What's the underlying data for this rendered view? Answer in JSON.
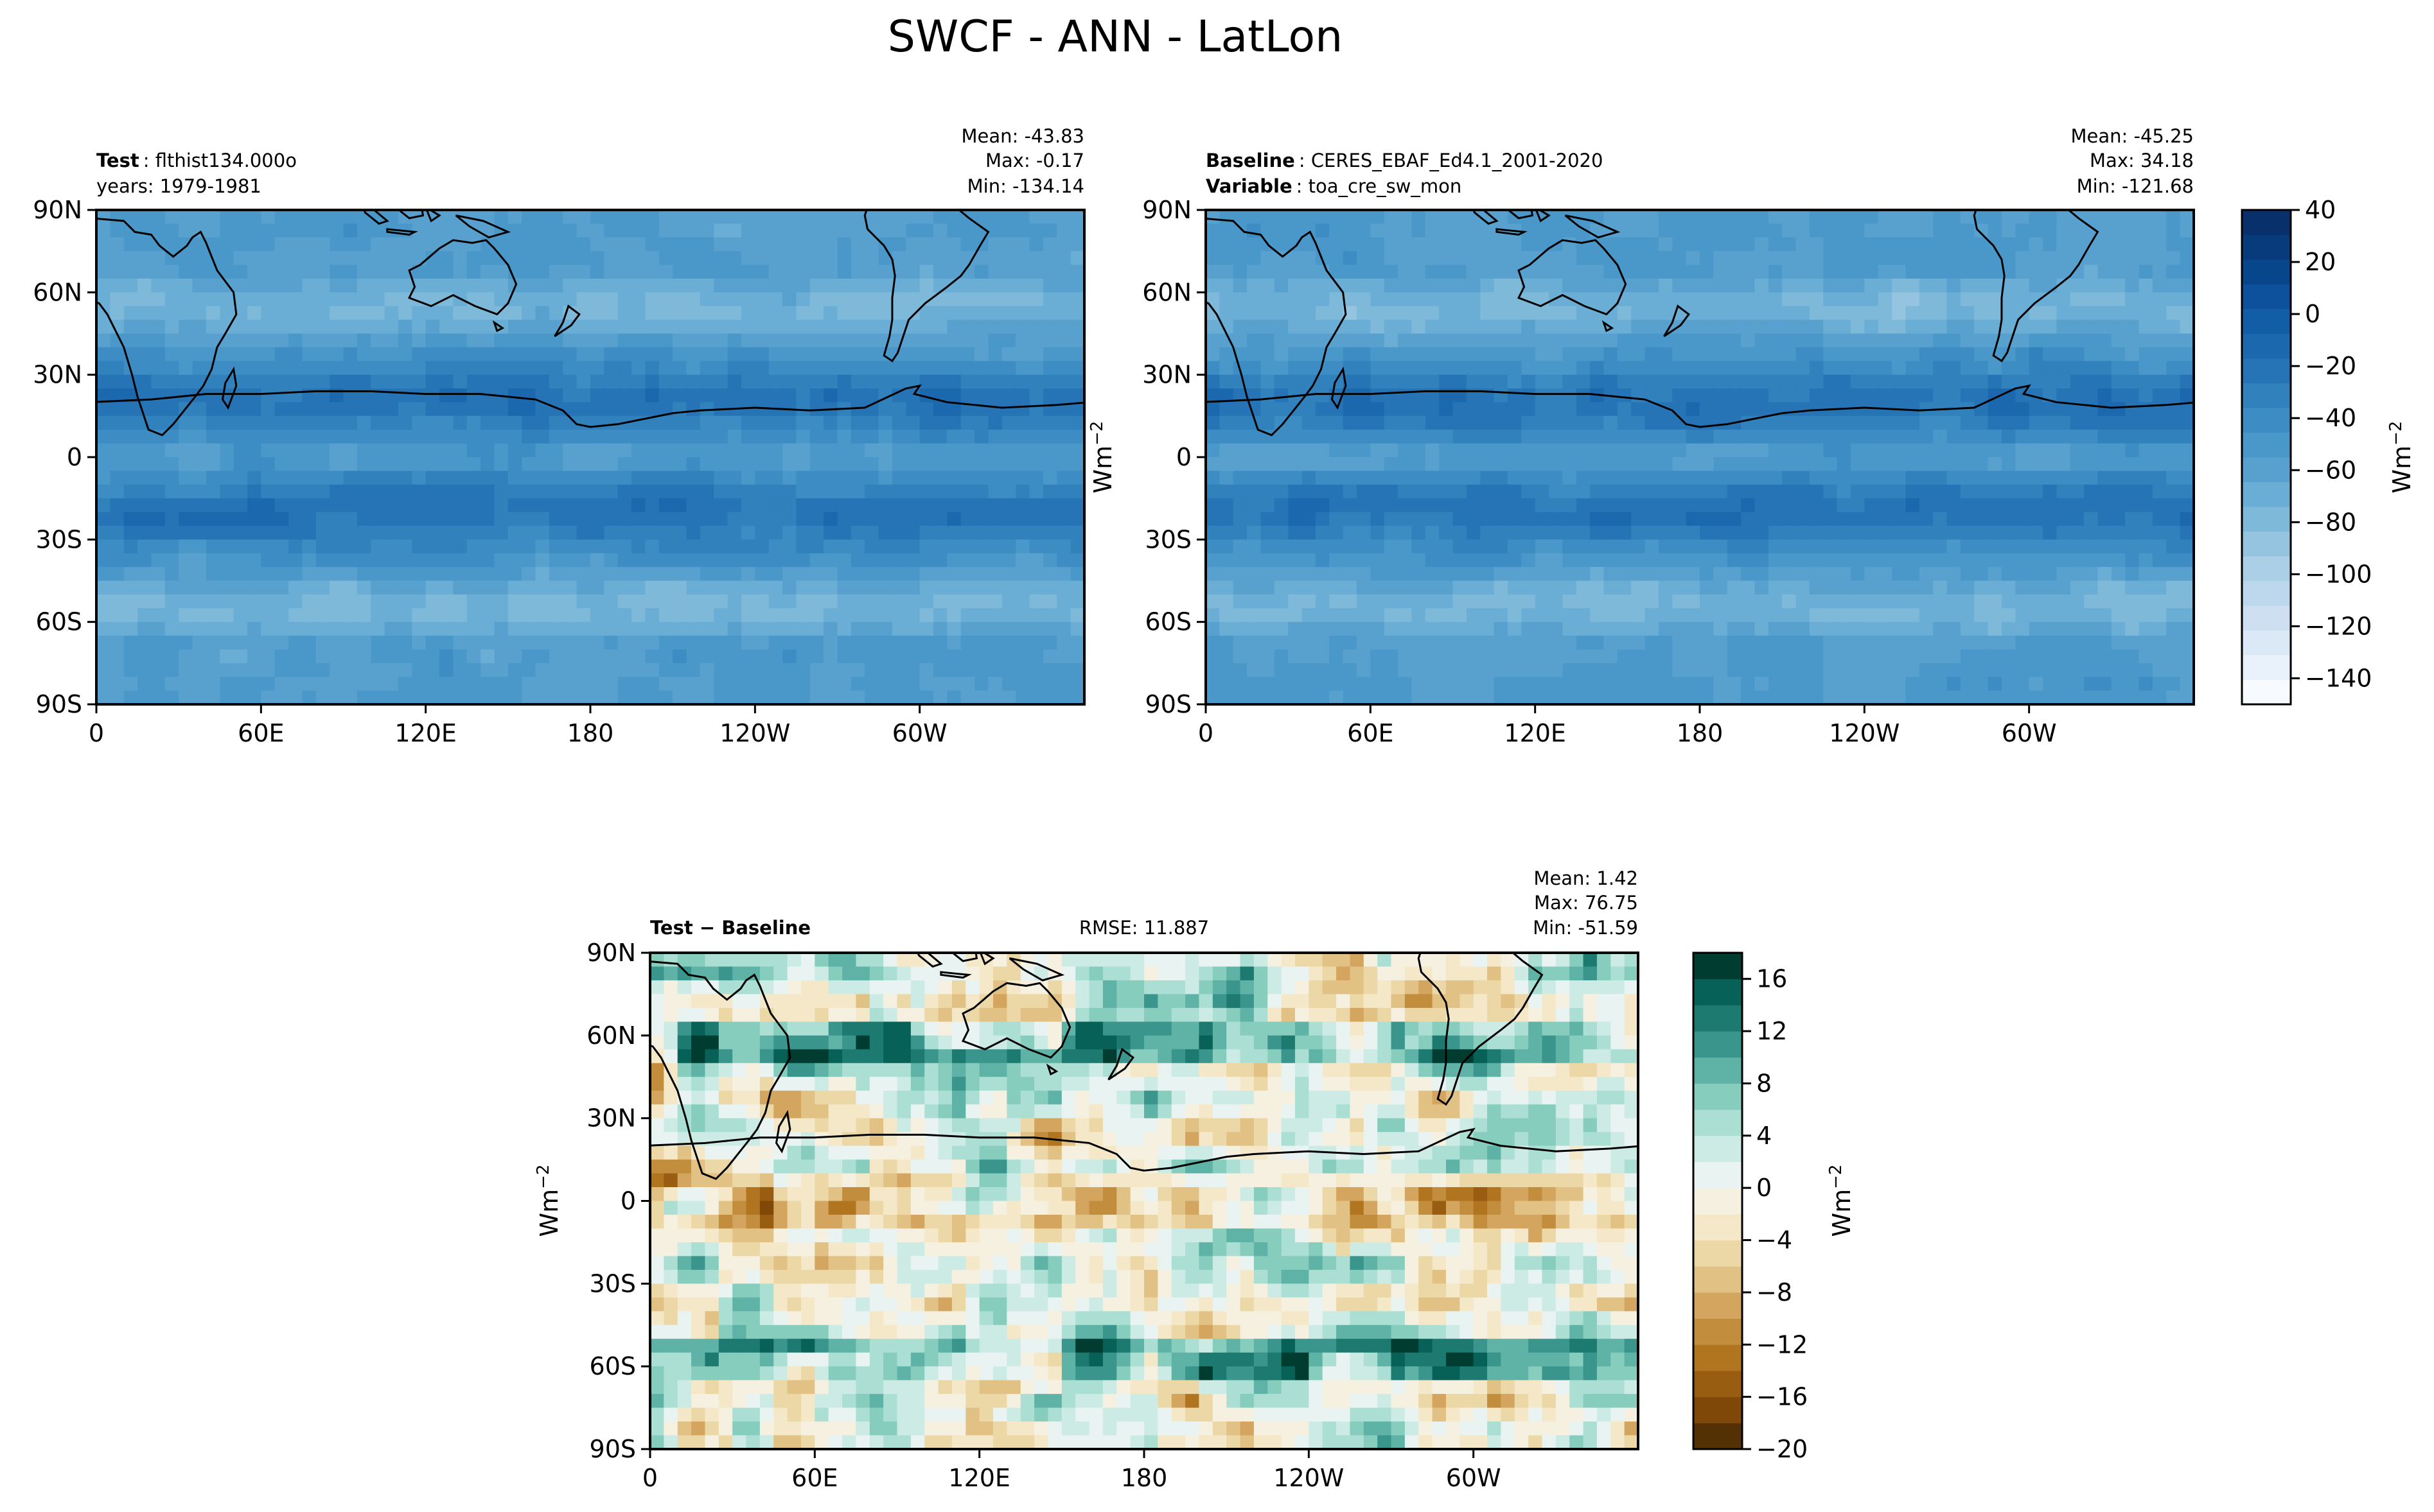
{
  "figure_title": "SWCF - ANN - LatLon",
  "unit_label": "Wm",
  "unit_exponent": "−2",
  "colors": {
    "land_outline": "#000000",
    "blues": [
      "#f7fbff",
      "#e9f2fb",
      "#dbe9f6",
      "#cddff1",
      "#bdd7ec",
      "#abcfe6",
      "#94c4df",
      "#7fb9da",
      "#6aaed6",
      "#58a1cf",
      "#4a98c9",
      "#3d8dc4",
      "#3181bd",
      "#2674b6",
      "#1c68ae",
      "#135da7",
      "#0d519c",
      "#08468b",
      "#083b7b",
      "#08306b"
    ],
    "brbg": [
      "#543005",
      "#7f4708",
      "#995d12",
      "#b1741f",
      "#c38d3e",
      "#d4a55f",
      "#e2c284",
      "#ecd8a6",
      "#f4e8c8",
      "#f5f0e0",
      "#e9f4f2",
      "#cdebe5",
      "#acdfd4",
      "#86cdbe",
      "#5eb3a6",
      "#3a968c",
      "#1c7a70",
      "#086157",
      "#003c30"
    ]
  },
  "chart_data": [
    {
      "type": "heatmap",
      "panel": "test",
      "label_bold": "Test",
      "label_text": "flthist134.000o",
      "line2": "years: 1979-1981",
      "stats": {
        "mean": "Mean: -43.83",
        "max": "Max: -0.17",
        "min": "Min: -134.14"
      },
      "x_ticks": [
        "0",
        "60E",
        "120E",
        "180",
        "120W",
        "60W"
      ],
      "y_ticks": [
        "90N",
        "60N",
        "30N",
        "0",
        "30S",
        "60S",
        "90S"
      ],
      "xlim": [
        0,
        360
      ],
      "ylim": [
        -90,
        90
      ],
      "vmin": -150,
      "vmax": 40,
      "mean_value": -43.83
    },
    {
      "type": "heatmap",
      "panel": "baseline",
      "label_bold": "Baseline",
      "label_text": "CERES_EBAF_Ed4.1_2001-2020",
      "line2_bold": "Variable",
      "line2_text": "toa_cre_sw_mon",
      "stats": {
        "mean": "Mean: -45.25",
        "max": "Max: 34.18",
        "min": "Min: -121.68"
      },
      "x_ticks": [
        "0",
        "60E",
        "120E",
        "180",
        "120W",
        "60W"
      ],
      "y_ticks": [
        "90N",
        "60N",
        "30N",
        "0",
        "30S",
        "60S",
        "90S"
      ],
      "xlim": [
        0,
        360
      ],
      "ylim": [
        -90,
        90
      ],
      "vmin": -150,
      "vmax": 40,
      "mean_value": -45.25
    },
    {
      "type": "heatmap",
      "panel": "difference",
      "label_bold": "Test − Baseline",
      "rmse": "RMSE: 11.887",
      "stats": {
        "mean": "Mean:  1.42",
        "max": "Max: 76.75",
        "min": "Min: -51.59"
      },
      "x_ticks": [
        "0",
        "60E",
        "120E",
        "180",
        "120W",
        "60W"
      ],
      "y_ticks": [
        "90N",
        "60N",
        "30N",
        "0",
        "30S",
        "60S",
        "90S"
      ],
      "xlim": [
        0,
        360
      ],
      "ylim": [
        -90,
        90
      ],
      "vmin": -20,
      "vmax": 18,
      "mean_value": 1.42
    }
  ],
  "colorbars": {
    "main": {
      "ticks": [
        "40",
        "20",
        "0",
        "−20",
        "−40",
        "−60",
        "−80",
        "−100",
        "−120",
        "−140"
      ],
      "values": [
        40,
        20,
        0,
        -20,
        -40,
        -60,
        -80,
        -100,
        -120,
        -140
      ],
      "vmin": -150,
      "vmax": 40
    },
    "diff": {
      "ticks": [
        "16",
        "12",
        "8",
        "4",
        "0",
        "−4",
        "−8",
        "−12",
        "−16",
        "−20"
      ],
      "values": [
        16,
        12,
        8,
        4,
        0,
        -4,
        -8,
        -12,
        -16,
        -20
      ],
      "vmin": -20,
      "vmax": 18
    }
  }
}
